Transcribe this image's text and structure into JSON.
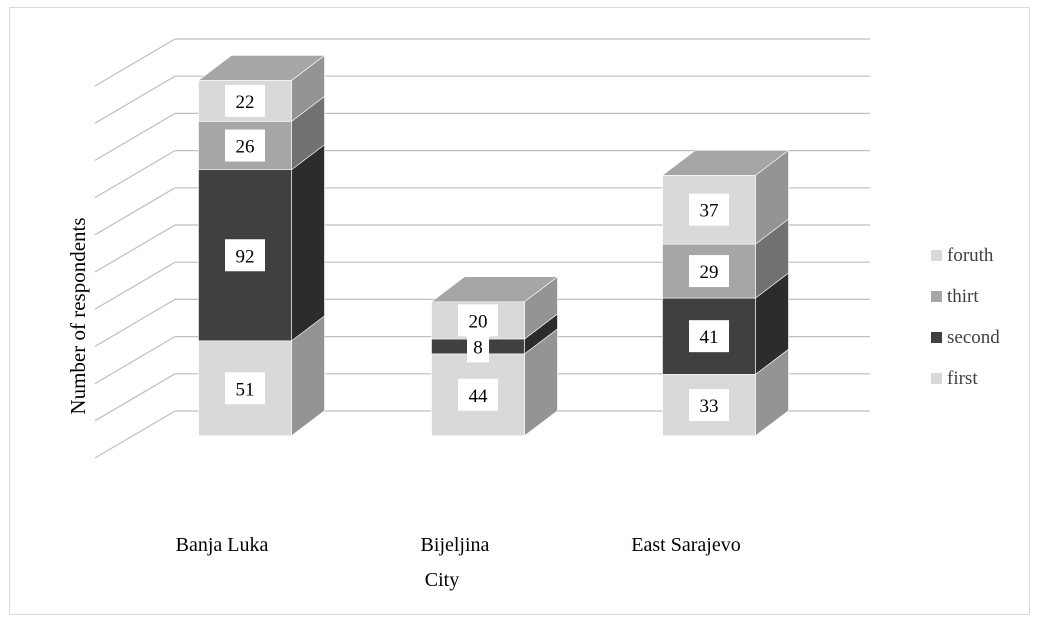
{
  "chart_data": {
    "type": "bar",
    "variant": "3d-stacked-column",
    "title": "",
    "xlabel": "City",
    "ylabel": "Number of respondents",
    "categories": [
      "Banja Luka",
      "Bijeljina",
      "East Sarajevo"
    ],
    "series": [
      {
        "name": "first",
        "values": [
          51,
          44,
          33
        ],
        "color": "#d9d9d9"
      },
      {
        "name": "second",
        "values": [
          92,
          8,
          41
        ],
        "color": "#404040"
      },
      {
        "name": "thirt",
        "values": [
          26,
          0,
          29
        ],
        "color": "#a6a6a6"
      },
      {
        "name": "foruth",
        "values": [
          22,
          20,
          37
        ],
        "color": "#d9d9d9"
      }
    ],
    "ylim": [
      0,
      200
    ],
    "y_tick_step": 20,
    "y_tick_labels_shown": false,
    "grid": true,
    "legend_position": "right",
    "legend_order": [
      "foruth",
      "thirt",
      "second",
      "first"
    ],
    "data_labels": true
  }
}
